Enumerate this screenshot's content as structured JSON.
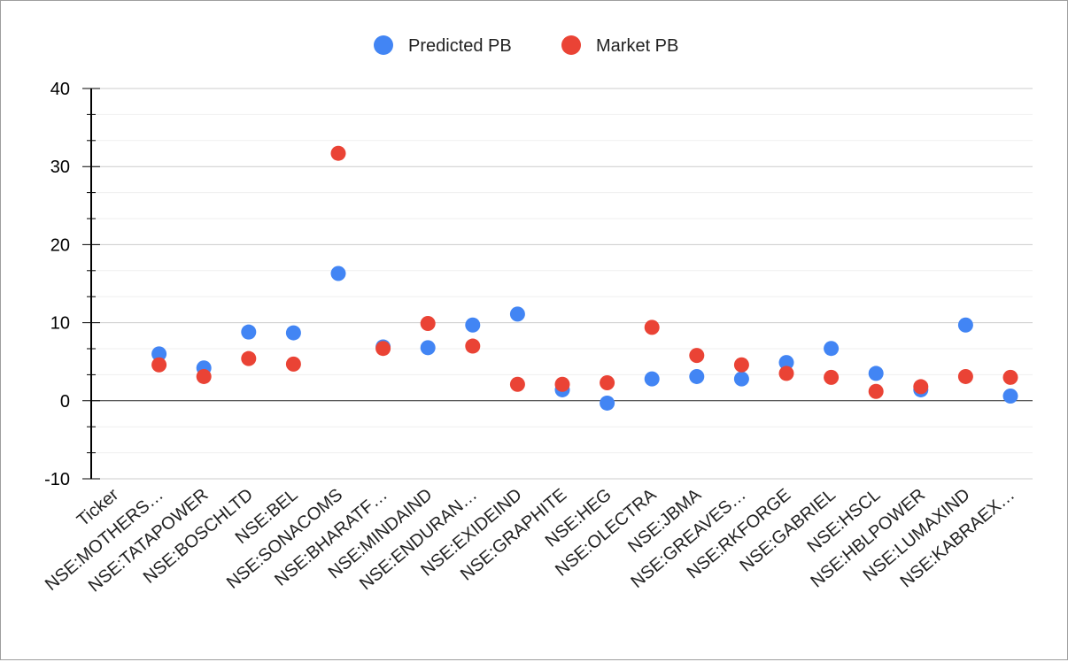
{
  "chart_data": {
    "type": "scatter",
    "title": "",
    "xlabel": "",
    "ylabel": "",
    "legend_position": "top-center",
    "grid": true,
    "ylim": [
      -10,
      40
    ],
    "y_ticks": [
      -10,
      0,
      10,
      20,
      30,
      40
    ],
    "categories": [
      "Ticker",
      "NSE:MOTHERS…",
      "NSE:TATAPOWER",
      "NSE:BOSCHLTD",
      "NSE:BEL",
      "NSE:SONACOMS",
      "NSE:BHARATF…",
      "NSE:MINDAIND",
      "NSE:ENDURAN…",
      "NSE:EXIDEIND",
      "NSE:GRAPHITE",
      "NSE:HEG",
      "NSE:OLECTRA",
      "NSE:JBMA",
      "NSE:GREAVES…",
      "NSE:RKFORGE",
      "NSE:GABRIEL",
      "NSE:HSCL",
      "NSE:HBLPOWER",
      "NSE:LUMAXIND",
      "NSE:KABRAEX…"
    ],
    "series": [
      {
        "name": "Predicted PB",
        "color": "#4285f4",
        "values": [
          null,
          6.0,
          4.2,
          8.8,
          8.7,
          16.3,
          6.9,
          6.8,
          9.7,
          11.1,
          1.4,
          -0.3,
          2.8,
          3.1,
          2.8,
          4.9,
          6.7,
          3.5,
          1.4,
          9.7,
          0.6
        ]
      },
      {
        "name": "Market PB",
        "color": "#ea4335",
        "values": [
          null,
          4.6,
          3.1,
          5.4,
          4.7,
          31.7,
          6.7,
          9.9,
          7.0,
          2.1,
          2.1,
          2.3,
          9.4,
          5.8,
          4.6,
          3.5,
          3.0,
          1.2,
          1.8,
          3.1,
          3.0
        ]
      }
    ]
  }
}
